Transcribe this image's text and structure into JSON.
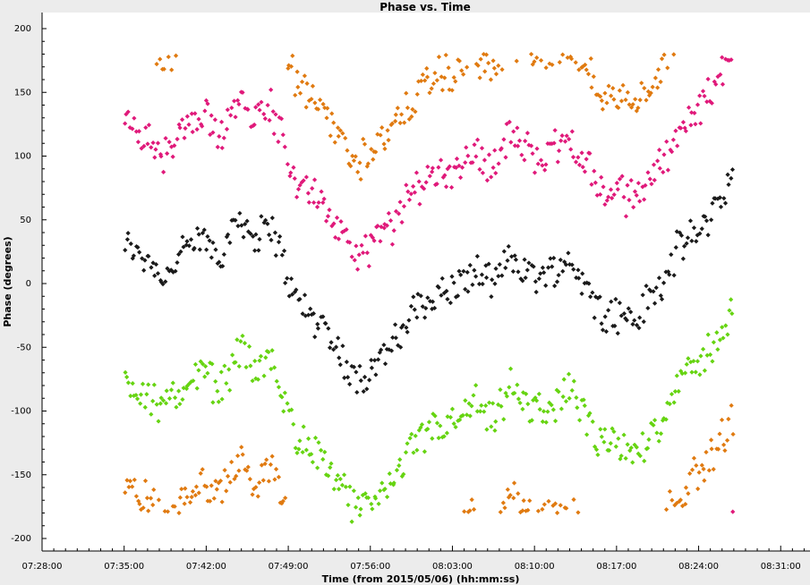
{
  "chart_data": {
    "type": "scatter",
    "title": "Phase vs. Time",
    "xlabel": "Time (from 2015/05/06) (hh:mm:ss)",
    "ylabel": "Phase (degrees)",
    "x_ticks": [
      "07:28:00",
      "07:35:00",
      "07:42:00",
      "07:49:00",
      "07:56:00",
      "08:03:00",
      "08:10:00",
      "08:17:00",
      "08:24:00",
      "08:31:00"
    ],
    "y_ticks": [
      200,
      150,
      100,
      50,
      0,
      -50,
      -100,
      -150,
      -200
    ],
    "xlim": [
      "07:28:00",
      "08:33:30"
    ],
    "ylim": [
      -200,
      200
    ],
    "grid": false,
    "legend": "none",
    "colors": {
      "black": "#1a1a1a",
      "magenta": "#e0197a",
      "green": "#66d411",
      "orange": "#e07a10",
      "background": "#ececec",
      "plot_background": "#ffffff"
    },
    "x_range": [
      "07:35:00",
      "08:27:00"
    ],
    "series": [
      {
        "color": "black",
        "offset": 0,
        "wrap": false,
        "profile": [
          [
            "07:35:00",
            30
          ],
          [
            "07:37:00",
            20
          ],
          [
            "07:38:30",
            5
          ],
          [
            "07:40:00",
            25
          ],
          [
            "07:42:00",
            35
          ],
          [
            "07:43:00",
            20
          ],
          [
            "07:45:00",
            55
          ],
          [
            "07:46:00",
            35
          ],
          [
            "07:47:30",
            45
          ],
          [
            "07:48:30",
            20
          ],
          [
            "07:49:30",
            -10
          ],
          [
            "07:51:00",
            -25
          ],
          [
            "07:52:30",
            -40
          ],
          [
            "07:54:00",
            -65
          ],
          [
            "07:55:00",
            -75
          ],
          [
            "07:56:30",
            -60
          ],
          [
            "07:58:00",
            -50
          ],
          [
            "07:59:30",
            -25
          ],
          [
            "08:01:00",
            -10
          ],
          [
            "08:03:00",
            -5
          ],
          [
            "08:05:00",
            10
          ],
          [
            "08:06:30",
            -5
          ],
          [
            "08:08:00",
            25
          ],
          [
            "08:09:00",
            10
          ],
          [
            "08:11:00",
            5
          ],
          [
            "08:13:00",
            20
          ],
          [
            "08:14:00",
            5
          ],
          [
            "08:15:30",
            -20
          ],
          [
            "08:17:30",
            -25
          ],
          [
            "08:18:30",
            -30
          ],
          [
            "08:20:00",
            -10
          ],
          [
            "08:21:00",
            0
          ],
          [
            "08:22:00",
            25
          ],
          [
            "08:24:00",
            40
          ],
          [
            "08:25:00",
            55
          ],
          [
            "08:27:00",
            85
          ]
        ]
      },
      {
        "color": "magenta",
        "offset": 95,
        "wrap": true,
        "profile": [
          [
            "07:35:00",
            30
          ],
          [
            "07:37:00",
            20
          ],
          [
            "07:38:30",
            5
          ],
          [
            "07:40:00",
            25
          ],
          [
            "07:42:00",
            35
          ],
          [
            "07:43:00",
            20
          ],
          [
            "07:45:00",
            55
          ],
          [
            "07:46:00",
            35
          ],
          [
            "07:47:30",
            45
          ],
          [
            "07:48:30",
            20
          ],
          [
            "07:49:30",
            -10
          ],
          [
            "07:51:00",
            -25
          ],
          [
            "07:52:30",
            -40
          ],
          [
            "07:54:00",
            -65
          ],
          [
            "07:55:00",
            -75
          ],
          [
            "07:56:30",
            -60
          ],
          [
            "07:58:00",
            -50
          ],
          [
            "07:59:30",
            -25
          ],
          [
            "08:01:00",
            -10
          ],
          [
            "08:03:00",
            -5
          ],
          [
            "08:05:00",
            10
          ],
          [
            "08:06:30",
            -5
          ],
          [
            "08:08:00",
            25
          ],
          [
            "08:09:00",
            10
          ],
          [
            "08:11:00",
            5
          ],
          [
            "08:13:00",
            20
          ],
          [
            "08:14:00",
            5
          ],
          [
            "08:15:30",
            -20
          ],
          [
            "08:17:30",
            -25
          ],
          [
            "08:18:30",
            -30
          ],
          [
            "08:20:00",
            -10
          ],
          [
            "08:21:00",
            0
          ],
          [
            "08:22:00",
            25
          ],
          [
            "08:24:00",
            40
          ],
          [
            "08:25:00",
            55
          ],
          [
            "08:27:00",
            85
          ]
        ]
      },
      {
        "color": "green",
        "offset": -105,
        "wrap": false,
        "profile": [
          [
            "07:35:00",
            30
          ],
          [
            "07:37:00",
            20
          ],
          [
            "07:38:30",
            5
          ],
          [
            "07:40:00",
            25
          ],
          [
            "07:42:00",
            35
          ],
          [
            "07:43:00",
            20
          ],
          [
            "07:45:00",
            55
          ],
          [
            "07:46:00",
            35
          ],
          [
            "07:47:30",
            45
          ],
          [
            "07:48:30",
            20
          ],
          [
            "07:49:30",
            -10
          ],
          [
            "07:51:00",
            -25
          ],
          [
            "07:52:30",
            -40
          ],
          [
            "07:54:00",
            -65
          ],
          [
            "07:55:00",
            -75
          ],
          [
            "07:56:30",
            -60
          ],
          [
            "07:58:00",
            -50
          ],
          [
            "07:59:30",
            -25
          ],
          [
            "08:01:00",
            -10
          ],
          [
            "08:03:00",
            -5
          ],
          [
            "08:05:00",
            10
          ],
          [
            "08:06:30",
            -5
          ],
          [
            "08:08:00",
            25
          ],
          [
            "08:09:00",
            10
          ],
          [
            "08:11:00",
            5
          ],
          [
            "08:13:00",
            20
          ],
          [
            "08:14:00",
            5
          ],
          [
            "08:15:30",
            -20
          ],
          [
            "08:17:30",
            -25
          ],
          [
            "08:18:30",
            -30
          ],
          [
            "08:20:00",
            -10
          ],
          [
            "08:21:00",
            0
          ],
          [
            "08:22:00",
            25
          ],
          [
            "08:24:00",
            40
          ],
          [
            "08:25:00",
            55
          ],
          [
            "08:27:00",
            85
          ]
        ]
      },
      {
        "color": "orange",
        "offset": -190,
        "wrap": true,
        "profile": [
          [
            "07:35:00",
            30
          ],
          [
            "07:37:00",
            20
          ],
          [
            "07:38:30",
            5
          ],
          [
            "07:40:00",
            25
          ],
          [
            "07:42:00",
            35
          ],
          [
            "07:43:00",
            20
          ],
          [
            "07:45:00",
            55
          ],
          [
            "07:46:00",
            35
          ],
          [
            "07:47:30",
            45
          ],
          [
            "07:48:30",
            20
          ],
          [
            "07:49:30",
            -10
          ],
          [
            "07:51:00",
            -25
          ],
          [
            "07:52:30",
            -40
          ],
          [
            "07:54:00",
            -65
          ],
          [
            "07:55:00",
            -75
          ],
          [
            "07:56:30",
            -60
          ],
          [
            "07:58:00",
            -50
          ],
          [
            "07:59:30",
            -25
          ],
          [
            "08:01:00",
            -10
          ],
          [
            "08:03:00",
            -5
          ],
          [
            "08:05:00",
            10
          ],
          [
            "08:06:30",
            -5
          ],
          [
            "08:08:00",
            25
          ],
          [
            "08:09:00",
            10
          ],
          [
            "08:11:00",
            5
          ],
          [
            "08:13:00",
            20
          ],
          [
            "08:14:00",
            5
          ],
          [
            "08:15:30",
            -20
          ],
          [
            "08:17:30",
            -25
          ],
          [
            "08:18:30",
            -30
          ],
          [
            "08:20:00",
            -10
          ],
          [
            "08:21:00",
            0
          ],
          [
            "08:22:00",
            25
          ],
          [
            "08:24:00",
            40
          ],
          [
            "08:25:00",
            55
          ],
          [
            "08:27:00",
            85
          ]
        ]
      }
    ]
  }
}
